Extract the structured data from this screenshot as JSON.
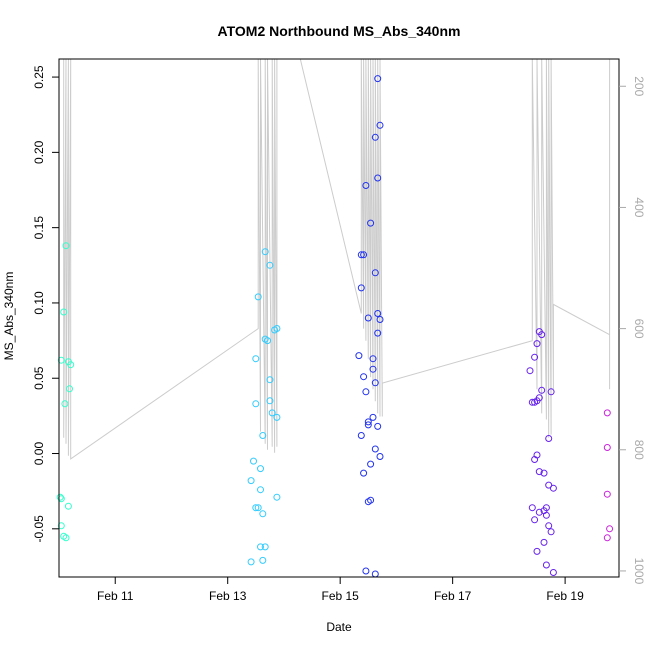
{
  "chart_data": {
    "type": "scatter",
    "title": "ATOM2 Northbound MS_Abs_340nm",
    "xlabel": "Date",
    "ylabel": "MS_Abs_340nm",
    "x_ticks": [
      "Feb 11",
      "Feb 13",
      "Feb 15",
      "Feb 17",
      "Feb 19"
    ],
    "y_ticks": [
      "-0.05",
      "0.00",
      "0.05",
      "0.10",
      "0.15",
      "0.20",
      "0.25"
    ],
    "y2_ticks": [
      "200",
      "400",
      "600",
      "800",
      "1000"
    ],
    "xlim": [
      "Feb 10 00:00",
      "Feb 19 23:00"
    ],
    "ylim": [
      -0.082,
      0.262
    ],
    "y2lim": [
      1010,
      155
    ],
    "y2_reversed": true,
    "grid": false,
    "legend": "none",
    "point_colors": {
      "Feb 10": "#33ffcc",
      "Feb 13": "#33ccff",
      "Feb 15": "#2233ee",
      "Feb 18": "#6622ee",
      "Feb 19": "#cc22dd"
    },
    "line_color": "#cccccc",
    "points": [
      {
        "x": "Feb 10 03:00",
        "y": 0.138
      },
      {
        "x": "Feb 10 02:00",
        "y": 0.094
      },
      {
        "x": "Feb 10 01:00",
        "y": 0.062
      },
      {
        "x": "Feb 10 04:00",
        "y": 0.061
      },
      {
        "x": "Feb 10 05:00",
        "y": 0.059
      },
      {
        "x": "Feb 10 04:30",
        "y": 0.043
      },
      {
        "x": "Feb 10 02:30",
        "y": 0.033
      },
      {
        "x": "Feb 10 00:30",
        "y": -0.029
      },
      {
        "x": "Feb 10 01:00",
        "y": -0.03
      },
      {
        "x": "Feb 10 04:00",
        "y": -0.035
      },
      {
        "x": "Feb 10 01:00",
        "y": -0.048
      },
      {
        "x": "Feb 10 02:00",
        "y": -0.055
      },
      {
        "x": "Feb 10 03:00",
        "y": -0.056
      },
      {
        "x": "Feb 13 13:00",
        "y": 0.104
      },
      {
        "x": "Feb 13 12:00",
        "y": 0.063
      },
      {
        "x": "Feb 13 12:00",
        "y": 0.033
      },
      {
        "x": "Feb 13 11:00",
        "y": -0.005
      },
      {
        "x": "Feb 13 14:00",
        "y": -0.01
      },
      {
        "x": "Feb 13 10:00",
        "y": -0.018
      },
      {
        "x": "Feb 13 14:00",
        "y": -0.024
      },
      {
        "x": "Feb 13 13:00",
        "y": -0.036
      },
      {
        "x": "Feb 13 12:00",
        "y": -0.036
      },
      {
        "x": "Feb 13 15:00",
        "y": -0.04
      },
      {
        "x": "Feb 13 14:00",
        "y": -0.062
      },
      {
        "x": "Feb 13 16:00",
        "y": -0.062
      },
      {
        "x": "Feb 13 10:00",
        "y": -0.072
      },
      {
        "x": "Feb 13 15:00",
        "y": -0.071
      },
      {
        "x": "Feb 13 16:00",
        "y": 0.134
      },
      {
        "x": "Feb 13 18:00",
        "y": 0.125
      },
      {
        "x": "Feb 13 21:00",
        "y": 0.083
      },
      {
        "x": "Feb 13 20:00",
        "y": 0.082
      },
      {
        "x": "Feb 13 16:00",
        "y": 0.076
      },
      {
        "x": "Feb 13 17:00",
        "y": 0.075
      },
      {
        "x": "Feb 13 18:00",
        "y": 0.049
      },
      {
        "x": "Feb 13 18:00",
        "y": 0.035
      },
      {
        "x": "Feb 13 19:00",
        "y": 0.027
      },
      {
        "x": "Feb 13 21:00",
        "y": 0.024
      },
      {
        "x": "Feb 13 15:00",
        "y": 0.012
      },
      {
        "x": "Feb 13 21:00",
        "y": -0.029
      },
      {
        "x": "Feb 15 16:00",
        "y": 0.249
      },
      {
        "x": "Feb 15 17:00",
        "y": 0.218
      },
      {
        "x": "Feb 15 15:00",
        "y": 0.21
      },
      {
        "x": "Feb 15 16:00",
        "y": 0.183
      },
      {
        "x": "Feb 15 11:00",
        "y": 0.178
      },
      {
        "x": "Feb 15 13:00",
        "y": 0.153
      },
      {
        "x": "Feb 15 09:00",
        "y": 0.132
      },
      {
        "x": "Feb 15 10:00",
        "y": 0.132
      },
      {
        "x": "Feb 15 15:00",
        "y": 0.12
      },
      {
        "x": "Feb 15 09:00",
        "y": 0.11
      },
      {
        "x": "Feb 15 16:00",
        "y": 0.093
      },
      {
        "x": "Feb 15 12:00",
        "y": 0.09
      },
      {
        "x": "Feb 15 17:00",
        "y": 0.089
      },
      {
        "x": "Feb 15 16:00",
        "y": 0.08
      },
      {
        "x": "Feb 15 08:00",
        "y": 0.065
      },
      {
        "x": "Feb 15 14:00",
        "y": 0.063
      },
      {
        "x": "Feb 15 14:00",
        "y": 0.056
      },
      {
        "x": "Feb 15 10:00",
        "y": 0.051
      },
      {
        "x": "Feb 15 15:00",
        "y": 0.047
      },
      {
        "x": "Feb 15 11:00",
        "y": 0.041
      },
      {
        "x": "Feb 15 14:00",
        "y": 0.024
      },
      {
        "x": "Feb 15 12:00",
        "y": 0.021
      },
      {
        "x": "Feb 15 12:00",
        "y": 0.019
      },
      {
        "x": "Feb 15 16:00",
        "y": 0.018
      },
      {
        "x": "Feb 15 09:00",
        "y": 0.012
      },
      {
        "x": "Feb 15 15:00",
        "y": 0.003
      },
      {
        "x": "Feb 15 17:00",
        "y": -0.002
      },
      {
        "x": "Feb 15 13:00",
        "y": -0.007
      },
      {
        "x": "Feb 15 10:00",
        "y": -0.013
      },
      {
        "x": "Feb 15 13:00",
        "y": -0.031
      },
      {
        "x": "Feb 15 12:00",
        "y": -0.032
      },
      {
        "x": "Feb 15 11:00",
        "y": -0.078
      },
      {
        "x": "Feb 15 15:00",
        "y": -0.08
      },
      {
        "x": "Feb 18 13:00",
        "y": 0.081
      },
      {
        "x": "Feb 18 14:00",
        "y": 0.079
      },
      {
        "x": "Feb 18 12:00",
        "y": 0.073
      },
      {
        "x": "Feb 18 11:00",
        "y": 0.064
      },
      {
        "x": "Feb 18 09:00",
        "y": 0.055
      },
      {
        "x": "Feb 18 14:00",
        "y": 0.042
      },
      {
        "x": "Feb 18 18:00",
        "y": 0.041
      },
      {
        "x": "Feb 18 13:00",
        "y": 0.037
      },
      {
        "x": "Feb 18 12:00",
        "y": 0.035
      },
      {
        "x": "Feb 18 10:00",
        "y": 0.034
      },
      {
        "x": "Feb 18 11:00",
        "y": 0.034
      },
      {
        "x": "Feb 18 17:00",
        "y": 0.01
      },
      {
        "x": "Feb 18 12:00",
        "y": -0.001
      },
      {
        "x": "Feb 18 11:00",
        "y": -0.004
      },
      {
        "x": "Feb 18 13:00",
        "y": -0.012
      },
      {
        "x": "Feb 18 15:00",
        "y": -0.013
      },
      {
        "x": "Feb 18 17:00",
        "y": -0.021
      },
      {
        "x": "Feb 18 19:00",
        "y": -0.023
      },
      {
        "x": "Feb 18 10:00",
        "y": -0.036
      },
      {
        "x": "Feb 18 16:00",
        "y": -0.036
      },
      {
        "x": "Feb 18 15:00",
        "y": -0.038
      },
      {
        "x": "Feb 18 13:00",
        "y": -0.039
      },
      {
        "x": "Feb 18 16:00",
        "y": -0.041
      },
      {
        "x": "Feb 18 11:00",
        "y": -0.044
      },
      {
        "x": "Feb 18 17:00",
        "y": -0.048
      },
      {
        "x": "Feb 18 18:00",
        "y": -0.052
      },
      {
        "x": "Feb 18 15:00",
        "y": -0.059
      },
      {
        "x": "Feb 18 12:00",
        "y": -0.065
      },
      {
        "x": "Feb 18 16:00",
        "y": -0.074
      },
      {
        "x": "Feb 18 19:00",
        "y": -0.079
      },
      {
        "x": "Feb 19 18:00",
        "y": 0.027
      },
      {
        "x": "Feb 19 18:00",
        "y": 0.004
      },
      {
        "x": "Feb 19 18:00",
        "y": -0.027
      },
      {
        "x": "Feb 19 19:00",
        "y": -0.05
      },
      {
        "x": "Feb 19 18:00",
        "y": -0.056
      }
    ],
    "line_y2": [
      [
        "Feb 10 02:00",
        720
      ],
      [
        "Feb 10 02:00",
        155
      ],
      [
        "Feb 10 02:00",
        780
      ],
      [
        "Feb 10 03:00",
        155
      ],
      [
        "Feb 10 03:00",
        790
      ],
      [
        "Feb 10 04:00",
        155
      ],
      [
        "Feb 10 04:00",
        810
      ],
      [
        "Feb 10 05:00",
        155
      ],
      [
        "Feb 10 05:00",
        815
      ],
      [
        "Feb 13 13:00",
        600
      ],
      [
        "Feb 13 13:00",
        155
      ],
      [
        "Feb 13 14:00",
        770
      ],
      [
        "Feb 13 14:00",
        155
      ],
      [
        "Feb 13 16:00",
        790
      ],
      [
        "Feb 13 16:00",
        155
      ],
      [
        "Feb 13 17:00",
        800
      ],
      [
        "Feb 13 17:00",
        155
      ],
      [
        "Feb 13 19:00",
        795
      ],
      [
        "Feb 13 19:00",
        155
      ],
      [
        "Feb 13 20:00",
        805
      ],
      [
        "Feb 13 20:00",
        155
      ],
      [
        "Feb 13 21:00",
        795
      ],
      [
        "Feb 13 21:00",
        155
      ],
      [
        "Feb 14 07:00",
        155
      ],
      [
        "Feb 15 09:00",
        575
      ],
      [
        "Feb 15 09:00",
        155
      ],
      [
        "Feb 15 10:00",
        600
      ],
      [
        "Feb 15 10:00",
        155
      ],
      [
        "Feb 15 11:00",
        620
      ],
      [
        "Feb 15 11:00",
        155
      ],
      [
        "Feb 15 12:00",
        650
      ],
      [
        "Feb 15 12:00",
        155
      ],
      [
        "Feb 15 13:00",
        680
      ],
      [
        "Feb 15 13:00",
        155
      ],
      [
        "Feb 15 14:00",
        700
      ],
      [
        "Feb 15 14:00",
        155
      ],
      [
        "Feb 15 15:00",
        720
      ],
      [
        "Feb 15 15:00",
        155
      ],
      [
        "Feb 15 16:00",
        740
      ],
      [
        "Feb 15 16:00",
        155
      ],
      [
        "Feb 15 17:00",
        745
      ],
      [
        "Feb 15 17:00",
        155
      ],
      [
        "Feb 15 18:00",
        745
      ],
      [
        "Feb 15 18:00",
        690
      ],
      [
        "Feb 18 10:00",
        620
      ],
      [
        "Feb 18 10:00",
        155
      ],
      [
        "Feb 18 12:00",
        700
      ],
      [
        "Feb 18 12:00",
        155
      ],
      [
        "Feb 18 14:00",
        740
      ],
      [
        "Feb 18 14:00",
        155
      ],
      [
        "Feb 18 16:00",
        750
      ],
      [
        "Feb 18 16:00",
        155
      ],
      [
        "Feb 18 17:00",
        780
      ],
      [
        "Feb 18 17:00",
        155
      ],
      [
        "Feb 18 18:00",
        775
      ],
      [
        "Feb 18 18:00",
        155
      ],
      [
        "Feb 18 19:00",
        700
      ],
      [
        "Feb 18 19:00",
        560
      ],
      [
        "Feb 19 19:00",
        610
      ],
      [
        "Feb 19 19:00",
        700
      ],
      [
        "Feb 19 19:00",
        155
      ]
    ]
  }
}
